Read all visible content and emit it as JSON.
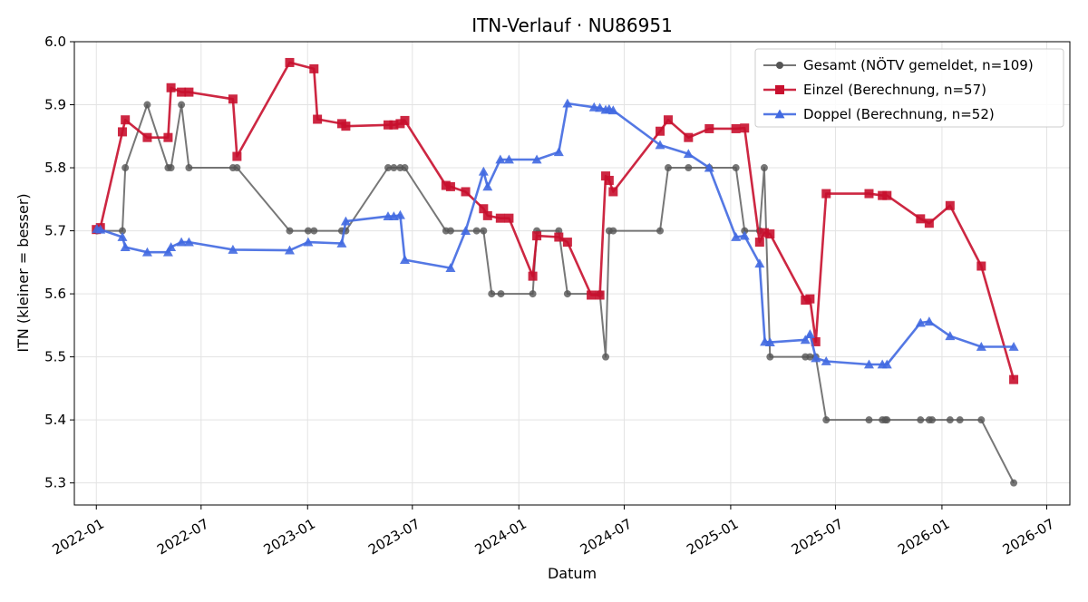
{
  "chart_data": {
    "type": "line",
    "title": "ITN-Verlauf · NU86951",
    "xlabel": "Datum",
    "ylabel": "ITN  (kleiner = besser)",
    "ylim": [
      5.265,
      6.0
    ],
    "xlim": [
      "2021-11-24",
      "2026-08-10"
    ],
    "yticks": [
      "5.3",
      "5.4",
      "5.5",
      "5.6",
      "5.7",
      "5.8",
      "5.9",
      "6.0"
    ],
    "xticks": [
      "2022-01",
      "2022-07",
      "2023-01",
      "2023-07",
      "2024-01",
      "2024-07",
      "2025-01",
      "2025-07",
      "2026-01",
      "2026-07"
    ],
    "grid": true,
    "legend_position": "top-right",
    "series": [
      {
        "name": "Gesamt (NÖTV gemeldet, n=109)",
        "color": "#555555",
        "marker": "circle",
        "points": [
          [
            "2022-01-02",
            5.7
          ],
          [
            "2022-02-15",
            5.7
          ],
          [
            "2022-02-20",
            5.8
          ],
          [
            "2022-03-30",
            5.9
          ],
          [
            "2022-05-05",
            5.8
          ],
          [
            "2022-05-10",
            5.8
          ],
          [
            "2022-05-28",
            5.9
          ],
          [
            "2022-06-10",
            5.8
          ],
          [
            "2022-08-25",
            5.8
          ],
          [
            "2022-09-01",
            5.8
          ],
          [
            "2022-12-01",
            5.7
          ],
          [
            "2023-01-02",
            5.7
          ],
          [
            "2023-01-12",
            5.7
          ],
          [
            "2023-03-01",
            5.7
          ],
          [
            "2023-03-08",
            5.7
          ],
          [
            "2023-05-20",
            5.8
          ],
          [
            "2023-05-30",
            5.8
          ],
          [
            "2023-06-10",
            5.8
          ],
          [
            "2023-06-18",
            5.8
          ],
          [
            "2023-08-28",
            5.7
          ],
          [
            "2023-09-05",
            5.7
          ],
          [
            "2023-10-20",
            5.7
          ],
          [
            "2023-11-01",
            5.7
          ],
          [
            "2023-11-15",
            5.6
          ],
          [
            "2023-12-01",
            5.6
          ],
          [
            "2024-01-25",
            5.6
          ],
          [
            "2024-02-01",
            5.7
          ],
          [
            "2024-03-10",
            5.7
          ],
          [
            "2024-03-25",
            5.6
          ],
          [
            "2024-05-20",
            5.6
          ],
          [
            "2024-05-30",
            5.5
          ],
          [
            "2024-06-05",
            5.7
          ],
          [
            "2024-06-12",
            5.7
          ],
          [
            "2024-09-01",
            5.7
          ],
          [
            "2024-09-15",
            5.8
          ],
          [
            "2024-10-20",
            5.8
          ],
          [
            "2024-11-25",
            5.8
          ],
          [
            "2025-01-10",
            5.8
          ],
          [
            "2025-01-25",
            5.7
          ],
          [
            "2025-02-20",
            5.7
          ],
          [
            "2025-02-28",
            5.8
          ],
          [
            "2025-03-10",
            5.5
          ],
          [
            "2025-05-10",
            5.5
          ],
          [
            "2025-05-18",
            5.5
          ],
          [
            "2025-05-28",
            5.5
          ],
          [
            "2025-06-15",
            5.4
          ],
          [
            "2025-08-28",
            5.4
          ],
          [
            "2025-09-20",
            5.4
          ],
          [
            "2025-09-25",
            5.4
          ],
          [
            "2025-09-28",
            5.4
          ],
          [
            "2025-11-25",
            5.4
          ],
          [
            "2025-12-10",
            5.4
          ],
          [
            "2025-12-15",
            5.4
          ],
          [
            "2026-01-15",
            5.4
          ],
          [
            "2026-02-01",
            5.4
          ],
          [
            "2026-03-10",
            5.4
          ],
          [
            "2026-05-05",
            5.3
          ]
        ]
      },
      {
        "name": "Einzel (Berechnung, n=57)",
        "color": "#c8102e",
        "marker": "square",
        "points": [
          [
            "2022-01-01",
            5.702
          ],
          [
            "2022-01-08",
            5.705
          ],
          [
            "2022-02-15",
            5.857
          ],
          [
            "2022-02-20",
            5.876
          ],
          [
            "2022-03-30",
            5.848
          ],
          [
            "2022-05-05",
            5.848
          ],
          [
            "2022-05-10",
            5.927
          ],
          [
            "2022-05-28",
            5.92
          ],
          [
            "2022-06-10",
            5.92
          ],
          [
            "2022-08-25",
            5.909
          ],
          [
            "2022-09-01",
            5.818
          ],
          [
            "2022-12-01",
            5.967
          ],
          [
            "2023-01-12",
            5.957
          ],
          [
            "2023-01-18",
            5.877
          ],
          [
            "2023-03-01",
            5.87
          ],
          [
            "2023-03-08",
            5.866
          ],
          [
            "2023-05-20",
            5.868
          ],
          [
            "2023-05-30",
            5.868
          ],
          [
            "2023-06-10",
            5.87
          ],
          [
            "2023-06-18",
            5.875
          ],
          [
            "2023-08-28",
            5.772
          ],
          [
            "2023-09-05",
            5.77
          ],
          [
            "2023-10-01",
            5.762
          ],
          [
            "2023-11-01",
            5.735
          ],
          [
            "2023-11-08",
            5.724
          ],
          [
            "2023-11-30",
            5.72
          ],
          [
            "2023-12-15",
            5.72
          ],
          [
            "2024-01-25",
            5.628
          ],
          [
            "2024-02-01",
            5.692
          ],
          [
            "2024-03-10",
            5.69
          ],
          [
            "2024-03-25",
            5.682
          ],
          [
            "2024-05-05",
            5.598
          ],
          [
            "2024-05-20",
            5.598
          ],
          [
            "2024-05-30",
            5.787
          ],
          [
            "2024-06-05",
            5.78
          ],
          [
            "2024-06-12",
            5.762
          ],
          [
            "2024-09-01",
            5.858
          ],
          [
            "2024-09-15",
            5.876
          ],
          [
            "2024-10-20",
            5.848
          ],
          [
            "2024-11-25",
            5.862
          ],
          [
            "2025-01-10",
            5.862
          ],
          [
            "2025-01-25",
            5.863
          ],
          [
            "2025-02-20",
            5.682
          ],
          [
            "2025-02-28",
            5.697
          ],
          [
            "2025-03-10",
            5.695
          ],
          [
            "2025-05-10",
            5.59
          ],
          [
            "2025-05-18",
            5.592
          ],
          [
            "2025-05-28",
            5.524
          ],
          [
            "2025-06-15",
            5.759
          ],
          [
            "2025-08-28",
            5.759
          ],
          [
            "2025-09-20",
            5.756
          ],
          [
            "2025-09-28",
            5.756
          ],
          [
            "2025-11-25",
            5.719
          ],
          [
            "2025-12-10",
            5.712
          ],
          [
            "2026-01-15",
            5.74
          ],
          [
            "2026-03-10",
            5.644
          ],
          [
            "2026-05-05",
            5.464
          ]
        ]
      },
      {
        "name": "Doppel (Berechnung, n=52)",
        "color": "#4169e1",
        "marker": "triangle",
        "points": [
          [
            "2022-01-02",
            5.703
          ],
          [
            "2022-01-08",
            5.702
          ],
          [
            "2022-02-15",
            5.69
          ],
          [
            "2022-02-20",
            5.674
          ],
          [
            "2022-03-30",
            5.666
          ],
          [
            "2022-05-05",
            5.666
          ],
          [
            "2022-05-10",
            5.674
          ],
          [
            "2022-05-28",
            5.682
          ],
          [
            "2022-06-10",
            5.682
          ],
          [
            "2022-08-25",
            5.67
          ],
          [
            "2022-12-01",
            5.669
          ],
          [
            "2023-01-02",
            5.682
          ],
          [
            "2023-03-01",
            5.68
          ],
          [
            "2023-03-08",
            5.715
          ],
          [
            "2023-05-20",
            5.723
          ],
          [
            "2023-05-30",
            5.723
          ],
          [
            "2023-06-10",
            5.725
          ],
          [
            "2023-06-18",
            5.654
          ],
          [
            "2023-09-05",
            5.641
          ],
          [
            "2023-10-01",
            5.7
          ],
          [
            "2023-11-01",
            5.794
          ],
          [
            "2023-11-08",
            5.77
          ],
          [
            "2023-11-30",
            5.813
          ],
          [
            "2023-12-15",
            5.813
          ],
          [
            "2024-02-01",
            5.813
          ],
          [
            "2024-03-10",
            5.825
          ],
          [
            "2024-03-25",
            5.902
          ],
          [
            "2024-05-10",
            5.896
          ],
          [
            "2024-05-20",
            5.895
          ],
          [
            "2024-05-30",
            5.892
          ],
          [
            "2024-06-05",
            5.893
          ],
          [
            "2024-06-12",
            5.891
          ],
          [
            "2024-09-01",
            5.836
          ],
          [
            "2024-10-20",
            5.822
          ],
          [
            "2024-11-25",
            5.8
          ],
          [
            "2025-01-10",
            5.69
          ],
          [
            "2025-01-25",
            5.692
          ],
          [
            "2025-02-20",
            5.648
          ],
          [
            "2025-03-01",
            5.524
          ],
          [
            "2025-03-10",
            5.523
          ],
          [
            "2025-05-10",
            5.527
          ],
          [
            "2025-05-18",
            5.536
          ],
          [
            "2025-05-28",
            5.498
          ],
          [
            "2025-06-15",
            5.493
          ],
          [
            "2025-08-28",
            5.488
          ],
          [
            "2025-09-20",
            5.488
          ],
          [
            "2025-09-28",
            5.488
          ],
          [
            "2025-11-25",
            5.554
          ],
          [
            "2025-12-10",
            5.556
          ],
          [
            "2026-01-15",
            5.533
          ],
          [
            "2026-03-10",
            5.516
          ],
          [
            "2026-05-05",
            5.516
          ]
        ]
      }
    ]
  }
}
